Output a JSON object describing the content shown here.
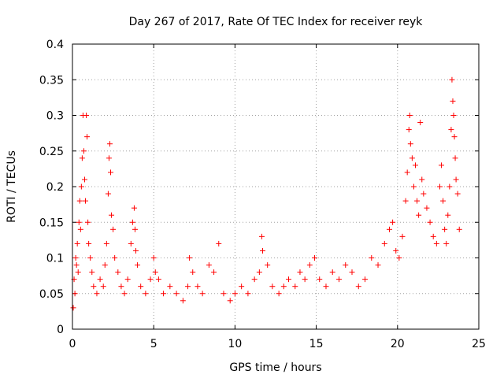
{
  "chart_data": {
    "type": "scatter",
    "title": "Day 267 of 2017, Rate Of TEC Index for receiver reyk",
    "xlabel": "GPS time / hours",
    "ylabel": "ROTI / TECUs",
    "xlim": [
      0,
      25
    ],
    "ylim": [
      0,
      0.4
    ],
    "x_ticks": [
      0,
      5,
      10,
      15,
      20,
      25
    ],
    "y_ticks": [
      0,
      0.05,
      0.1,
      0.15,
      0.2,
      0.25,
      0.3,
      0.35,
      0.4
    ],
    "x_tick_labels": [
      "0",
      "5",
      "10",
      "15",
      "20",
      "25"
    ],
    "y_tick_labels": [
      "0",
      "0.05",
      "0.1",
      "0.15",
      "0.2",
      "0.25",
      "0.3",
      "0.35",
      "0.4"
    ],
    "grid": true,
    "marker": "+",
    "color": "#ff0000",
    "series": [
      {
        "name": "ROTI",
        "points": [
          [
            0.05,
            0.03
          ],
          [
            0.1,
            0.07
          ],
          [
            0.15,
            0.05
          ],
          [
            0.2,
            0.1
          ],
          [
            0.25,
            0.09
          ],
          [
            0.3,
            0.12
          ],
          [
            0.35,
            0.08
          ],
          [
            0.4,
            0.15
          ],
          [
            0.45,
            0.18
          ],
          [
            0.5,
            0.14
          ],
          [
            0.55,
            0.2
          ],
          [
            0.6,
            0.24
          ],
          [
            0.65,
            0.3
          ],
          [
            0.7,
            0.25
          ],
          [
            0.75,
            0.21
          ],
          [
            0.8,
            0.18
          ],
          [
            0.85,
            0.3
          ],
          [
            0.9,
            0.27
          ],
          [
            0.95,
            0.15
          ],
          [
            1.0,
            0.12
          ],
          [
            1.1,
            0.1
          ],
          [
            1.2,
            0.08
          ],
          [
            1.3,
            0.06
          ],
          [
            1.5,
            0.05
          ],
          [
            1.7,
            0.07
          ],
          [
            1.9,
            0.06
          ],
          [
            2.0,
            0.09
          ],
          [
            2.1,
            0.12
          ],
          [
            2.2,
            0.19
          ],
          [
            2.25,
            0.24
          ],
          [
            2.3,
            0.26
          ],
          [
            2.35,
            0.22
          ],
          [
            2.4,
            0.16
          ],
          [
            2.5,
            0.14
          ],
          [
            2.6,
            0.1
          ],
          [
            2.8,
            0.08
          ],
          [
            3.0,
            0.06
          ],
          [
            3.2,
            0.05
          ],
          [
            3.4,
            0.07
          ],
          [
            3.6,
            0.12
          ],
          [
            3.7,
            0.15
          ],
          [
            3.8,
            0.17
          ],
          [
            3.85,
            0.14
          ],
          [
            3.9,
            0.11
          ],
          [
            4.0,
            0.09
          ],
          [
            4.2,
            0.06
          ],
          [
            4.5,
            0.05
          ],
          [
            4.8,
            0.07
          ],
          [
            5.0,
            0.1
          ],
          [
            5.1,
            0.08
          ],
          [
            5.3,
            0.07
          ],
          [
            5.6,
            0.05
          ],
          [
            6.0,
            0.06
          ],
          [
            6.4,
            0.05
          ],
          [
            6.8,
            0.04
          ],
          [
            7.1,
            0.06
          ],
          [
            7.2,
            0.1
          ],
          [
            7.4,
            0.08
          ],
          [
            7.7,
            0.06
          ],
          [
            8.0,
            0.05
          ],
          [
            8.4,
            0.09
          ],
          [
            8.7,
            0.08
          ],
          [
            9.0,
            0.12
          ],
          [
            9.3,
            0.05
          ],
          [
            9.7,
            0.04
          ],
          [
            10.0,
            0.05
          ],
          [
            10.4,
            0.06
          ],
          [
            10.8,
            0.05
          ],
          [
            11.2,
            0.07
          ],
          [
            11.5,
            0.08
          ],
          [
            11.65,
            0.13
          ],
          [
            11.7,
            0.11
          ],
          [
            12.0,
            0.09
          ],
          [
            12.3,
            0.06
          ],
          [
            12.7,
            0.05
          ],
          [
            13.0,
            0.06
          ],
          [
            13.3,
            0.07
          ],
          [
            13.7,
            0.06
          ],
          [
            14.0,
            0.08
          ],
          [
            14.3,
            0.07
          ],
          [
            14.6,
            0.09
          ],
          [
            14.9,
            0.1
          ],
          [
            15.2,
            0.07
          ],
          [
            15.6,
            0.06
          ],
          [
            16.0,
            0.08
          ],
          [
            16.4,
            0.07
          ],
          [
            16.8,
            0.09
          ],
          [
            17.2,
            0.08
          ],
          [
            17.6,
            0.06
          ],
          [
            18.0,
            0.07
          ],
          [
            18.4,
            0.1
          ],
          [
            18.8,
            0.09
          ],
          [
            19.2,
            0.12
          ],
          [
            19.5,
            0.14
          ],
          [
            19.7,
            0.15
          ],
          [
            19.9,
            0.11
          ],
          [
            20.1,
            0.1
          ],
          [
            20.3,
            0.13
          ],
          [
            20.5,
            0.18
          ],
          [
            20.6,
            0.22
          ],
          [
            20.7,
            0.28
          ],
          [
            20.75,
            0.3
          ],
          [
            20.8,
            0.26
          ],
          [
            20.9,
            0.24
          ],
          [
            21.0,
            0.2
          ],
          [
            21.1,
            0.23
          ],
          [
            21.2,
            0.18
          ],
          [
            21.3,
            0.16
          ],
          [
            21.4,
            0.29
          ],
          [
            21.5,
            0.21
          ],
          [
            21.6,
            0.19
          ],
          [
            21.8,
            0.17
          ],
          [
            22.0,
            0.15
          ],
          [
            22.2,
            0.13
          ],
          [
            22.4,
            0.12
          ],
          [
            22.6,
            0.2
          ],
          [
            22.7,
            0.23
          ],
          [
            22.8,
            0.18
          ],
          [
            22.9,
            0.14
          ],
          [
            23.0,
            0.12
          ],
          [
            23.1,
            0.16
          ],
          [
            23.2,
            0.2
          ],
          [
            23.3,
            0.28
          ],
          [
            23.35,
            0.35
          ],
          [
            23.4,
            0.32
          ],
          [
            23.45,
            0.3
          ],
          [
            23.5,
            0.27
          ],
          [
            23.55,
            0.24
          ],
          [
            23.6,
            0.21
          ],
          [
            23.7,
            0.19
          ],
          [
            23.8,
            0.14
          ]
        ]
      }
    ]
  }
}
